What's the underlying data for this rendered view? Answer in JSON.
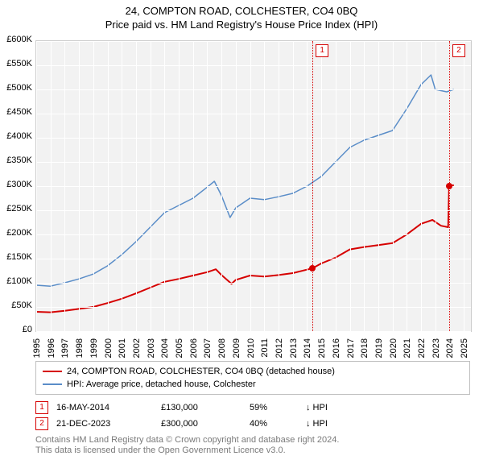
{
  "title": "24, COMPTON ROAD, COLCHESTER, CO4 0BQ",
  "subtitle": "Price paid vs. HM Land Registry's House Price Index (HPI)",
  "chart": {
    "type": "line",
    "background_color": "#f2f2f2",
    "grid_color": "#ffffff",
    "x_years": [
      1995,
      1996,
      1997,
      1998,
      1999,
      2000,
      2001,
      2002,
      2003,
      2004,
      2005,
      2006,
      2007,
      2008,
      2009,
      2010,
      2011,
      2012,
      2013,
      2014,
      2015,
      2016,
      2017,
      2018,
      2019,
      2020,
      2021,
      2022,
      2023,
      2024,
      2025
    ],
    "xlim": [
      1995,
      2025.5
    ],
    "ylim": [
      0,
      600000
    ],
    "ytick_step": 50000,
    "ylabels": [
      "£0",
      "£50K",
      "£100K",
      "£150K",
      "£200K",
      "£250K",
      "£300K",
      "£350K",
      "£400K",
      "£450K",
      "£500K",
      "£550K",
      "£600K"
    ],
    "title_fontsize": 13,
    "label_fontsize": 11,
    "series": {
      "hpi": {
        "label": "HPI: Average price, detached house, Colchester",
        "color": "#5a8dc8",
        "width": 1.5,
        "points": [
          [
            1995,
            95000
          ],
          [
            1996,
            93000
          ],
          [
            1997,
            100000
          ],
          [
            1998,
            108000
          ],
          [
            1999,
            118000
          ],
          [
            2000,
            135000
          ],
          [
            2001,
            158000
          ],
          [
            2002,
            185000
          ],
          [
            2003,
            215000
          ],
          [
            2004,
            245000
          ],
          [
            2005,
            260000
          ],
          [
            2006,
            275000
          ],
          [
            2007,
            298000
          ],
          [
            2007.5,
            310000
          ],
          [
            2008,
            280000
          ],
          [
            2008.6,
            235000
          ],
          [
            2009,
            255000
          ],
          [
            2010,
            275000
          ],
          [
            2011,
            272000
          ],
          [
            2012,
            278000
          ],
          [
            2013,
            285000
          ],
          [
            2014,
            300000
          ],
          [
            2015,
            320000
          ],
          [
            2016,
            350000
          ],
          [
            2017,
            380000
          ],
          [
            2018,
            395000
          ],
          [
            2019,
            405000
          ],
          [
            2020,
            415000
          ],
          [
            2021,
            460000
          ],
          [
            2022,
            510000
          ],
          [
            2022.7,
            530000
          ],
          [
            2023,
            500000
          ],
          [
            2023.8,
            495000
          ],
          [
            2024.3,
            500000
          ]
        ]
      },
      "price_paid": {
        "label": "24, COMPTON ROAD, COLCHESTER, CO4 0BQ (detached house)",
        "color": "#d60000",
        "width": 2,
        "points": [
          [
            1995,
            40000
          ],
          [
            1996,
            39000
          ],
          [
            1997,
            42000
          ],
          [
            1998,
            46000
          ],
          [
            1999,
            50000
          ],
          [
            2000,
            58000
          ],
          [
            2001,
            67000
          ],
          [
            2002,
            78000
          ],
          [
            2003,
            90000
          ],
          [
            2004,
            102000
          ],
          [
            2005,
            108000
          ],
          [
            2006,
            115000
          ],
          [
            2007,
            122000
          ],
          [
            2007.6,
            128000
          ],
          [
            2008,
            116000
          ],
          [
            2008.7,
            98000
          ],
          [
            2009,
            106000
          ],
          [
            2010,
            115000
          ],
          [
            2011,
            113000
          ],
          [
            2012,
            116000
          ],
          [
            2013,
            120000
          ],
          [
            2014.38,
            130000
          ],
          [
            2015,
            140000
          ],
          [
            2016,
            152000
          ],
          [
            2017,
            169000
          ],
          [
            2018,
            174000
          ],
          [
            2019,
            178000
          ],
          [
            2020,
            182000
          ],
          [
            2021,
            200000
          ],
          [
            2022,
            222000
          ],
          [
            2022.8,
            230000
          ],
          [
            2023.4,
            218000
          ],
          [
            2023.9,
            215000
          ],
          [
            2023.97,
            300000
          ],
          [
            2024.3,
            302000
          ]
        ]
      }
    },
    "markers": [
      {
        "x": 2014.38,
        "y": 130000
      },
      {
        "x": 2023.97,
        "y": 300000
      }
    ],
    "references": [
      {
        "num": "1",
        "x": 2014.38
      },
      {
        "num": "2",
        "x": 2023.97
      }
    ]
  },
  "legend": {
    "rows": [
      {
        "color": "#d60000",
        "label": "24, COMPTON ROAD, COLCHESTER, CO4 0BQ (detached house)"
      },
      {
        "color": "#5a8dc8",
        "label": "HPI: Average price, detached house, Colchester"
      }
    ]
  },
  "sales": [
    {
      "num": "1",
      "date": "16-MAY-2014",
      "price": "£130,000",
      "pct": "59%",
      "arrow": "↓",
      "suffix": "HPI"
    },
    {
      "num": "2",
      "date": "21-DEC-2023",
      "price": "£300,000",
      "pct": "40%",
      "arrow": "↓",
      "suffix": "HPI"
    }
  ],
  "attribution": {
    "line1": "Contains HM Land Registry data © Crown copyright and database right 2024.",
    "line2": "This data is licensed under the Open Government Licence v3.0."
  }
}
